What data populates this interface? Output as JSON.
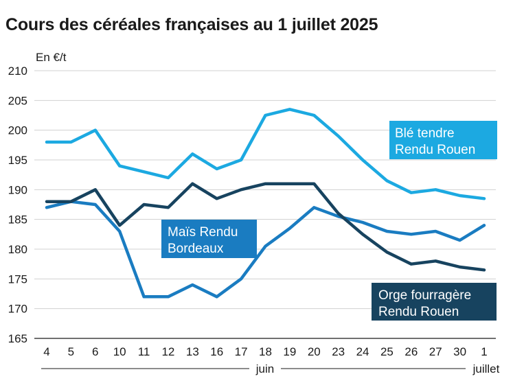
{
  "title": "Cours des céréales françaises au 1 juillet 2025",
  "unit_label": "En €/t",
  "month_labels": {
    "june": "juin",
    "july": "juillet"
  },
  "series_labels": {
    "ble": [
      "Blé tendre",
      "Rendu Rouen"
    ],
    "mais": [
      "Maïs Rendu",
      "Bordeaux"
    ],
    "orge": [
      "Orge fourragère",
      "Rendu Rouen"
    ]
  },
  "chart_data": {
    "type": "line",
    "title": "Cours des céréales françaises au 1 juillet 2025",
    "ylabel": "En €/t",
    "xlabel": "",
    "ylim": [
      165,
      210
    ],
    "yticks": [
      165,
      170,
      175,
      180,
      185,
      190,
      195,
      200,
      205,
      210
    ],
    "categories": [
      "4",
      "5",
      "6",
      "10",
      "11",
      "12",
      "13",
      "16",
      "17",
      "18",
      "19",
      "20",
      "23",
      "24",
      "25",
      "26",
      "27",
      "30",
      "1"
    ],
    "series": [
      {
        "name": "Blé tendre Rendu Rouen",
        "color": "#1ca9e1",
        "values": [
          198,
          198,
          200,
          194,
          193,
          192,
          196,
          193.5,
          195,
          202.5,
          203.5,
          202.5,
          199,
          195,
          191.5,
          189.5,
          190,
          189,
          188.5
        ]
      },
      {
        "name": "Maïs Rendu Bordeaux",
        "color": "#1a7cc1",
        "values": [
          187,
          188,
          187.5,
          183,
          172,
          172,
          174,
          172,
          175,
          180.5,
          183.5,
          187,
          185.5,
          184.5,
          183,
          182.5,
          183,
          181.5,
          184
        ]
      },
      {
        "name": "Orge fourragère Rendu Rouen",
        "color": "#17435f",
        "values": [
          188,
          188,
          190,
          184,
          187.5,
          187,
          191,
          188.5,
          190,
          191,
          191,
          191,
          186,
          182.5,
          179.5,
          177.5,
          178,
          177,
          176.5
        ]
      }
    ]
  }
}
